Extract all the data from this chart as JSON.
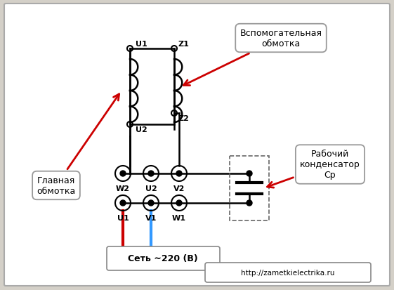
{
  "bg_color": "#d4d0c8",
  "panel_color": "#ffffff",
  "label_glavnaya": "Главная\nобмотка",
  "label_vspomogatelnaya": "Вспомогательная\nобмотка",
  "label_kondensator": "Рабочий\nконденсатор\nСр",
  "label_set": "Сеть ~220 (В)",
  "label_url": "http://zametkielectrika.ru",
  "wire_color": "#000000",
  "red_wire": "#cc0000",
  "blue_wire": "#3399ff",
  "arrow_color": "#cc0000"
}
